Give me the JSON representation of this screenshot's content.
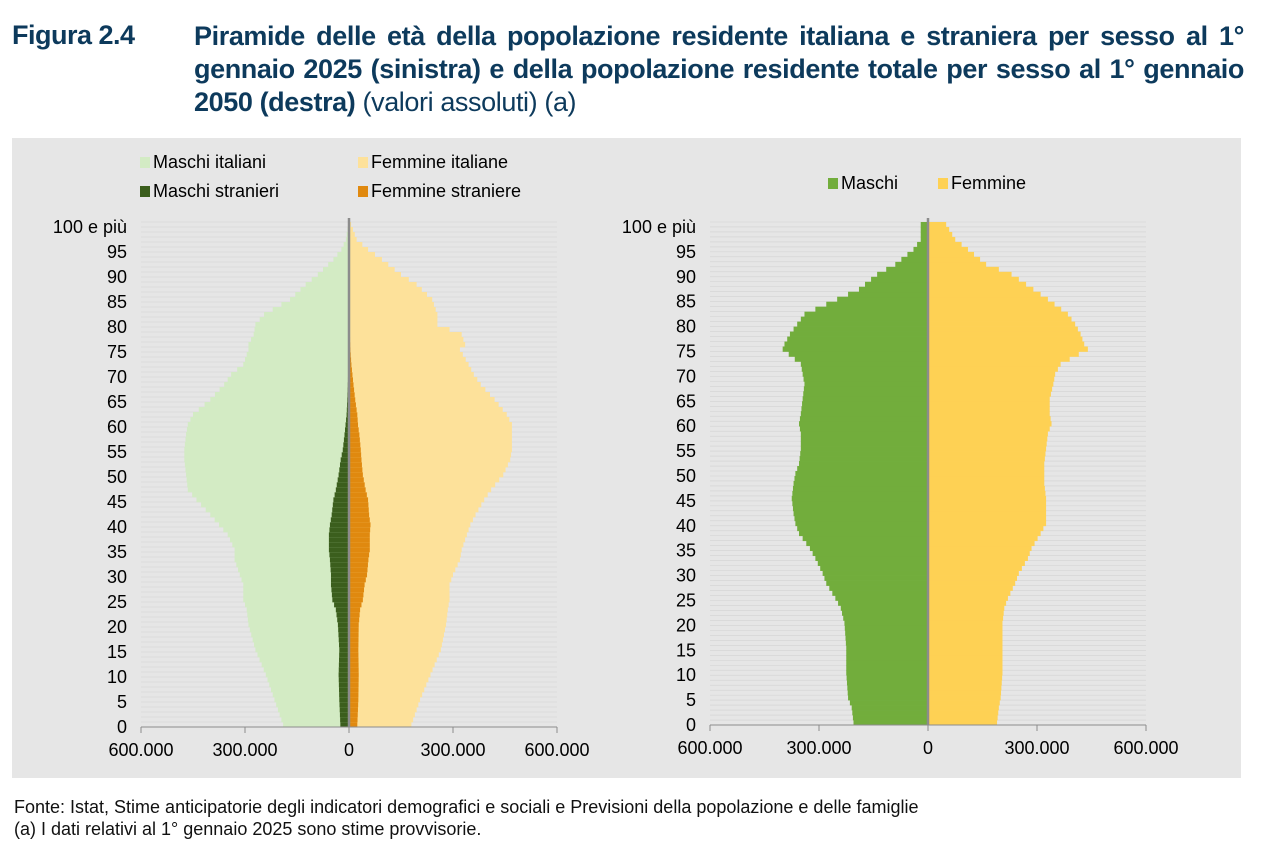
{
  "figure": {
    "label": "Figura 2.4",
    "title_main": "Piramide delle età della popolazione residente italiana e straniera per sesso al 1° gennaio 2025 (sinistra) e della popolazione residente totale per sesso al 1° gennaio 2050 (destra)",
    "title_sub": "(valori assoluti) (a)"
  },
  "notes": {
    "source": "Fonte: Istat, Stime anticipatorie degli indicatori demografici e sociali e Previsioni della popolazione e delle famiglie",
    "note_a": "(a) I dati relativi al 1° gennaio 2025 sono stime provvisorie."
  },
  "colors": {
    "maschi_italiani": "#d3ebc4",
    "femmine_italiane": "#fde19a",
    "maschi_stranieri": "#3b5e1d",
    "femmine_straniere": "#e0890f",
    "maschi": "#72ad3c",
    "femmine": "#fed154",
    "center_axis": "#8c8c8c"
  },
  "chart_data": [
    {
      "type": "bar",
      "orientation": "horizontal-pyramid",
      "stacked": true,
      "legend": [
        "Maschi italiani",
        "Femmine italiane",
        "Maschi stranieri",
        "Femmine straniere"
      ],
      "legend_position": "top-left",
      "y_ticks": [
        "0",
        "5",
        "10",
        "15",
        "20",
        "25",
        "30",
        "35",
        "40",
        "45",
        "50",
        "55",
        "60",
        "65",
        "70",
        "75",
        "80",
        "85",
        "90",
        "95",
        "100 e più"
      ],
      "x_ticks": [
        "600.000",
        "300.000",
        "0",
        "300.000",
        "600.000"
      ],
      "xlim": [
        -600000,
        600000
      ],
      "grid": true,
      "age_knots": [
        0,
        5,
        10,
        15,
        20,
        23,
        25,
        28,
        30,
        33,
        35,
        38,
        40,
        42,
        45,
        47,
        50,
        53,
        55,
        58,
        60,
        62,
        65,
        68,
        70,
        72,
        75,
        76,
        78,
        80,
        82,
        85,
        88,
        90,
        93,
        95,
        97,
        100
      ],
      "series": [
        {
          "name": "Maschi italiani",
          "values": [
            190000,
            215000,
            240000,
            270000,
            290000,
            295000,
            305000,
            305000,
            315000,
            330000,
            330000,
            350000,
            375000,
            400000,
            440000,
            465000,
            470000,
            475000,
            475000,
            470000,
            465000,
            450000,
            400000,
            360000,
            340000,
            305000,
            290000,
            290000,
            275000,
            270000,
            245000,
            170000,
            125000,
            90000,
            45000,
            22000,
            9000,
            2000
          ]
        },
        {
          "name": "Femmine italiane",
          "values": [
            180000,
            205000,
            235000,
            265000,
            280000,
            285000,
            290000,
            290000,
            300000,
            320000,
            325000,
            340000,
            350000,
            365000,
            390000,
            410000,
            445000,
            465000,
            470000,
            470000,
            470000,
            455000,
            420000,
            380000,
            360000,
            345000,
            320000,
            335000,
            325000,
            255000,
            255000,
            240000,
            195000,
            150000,
            95000,
            55000,
            22000,
            6000
          ]
        },
        {
          "name": "Maschi stranieri",
          "values": [
            25000,
            28000,
            30000,
            28000,
            32000,
            38000,
            48000,
            52000,
            52000,
            55000,
            58000,
            58000,
            55000,
            50000,
            45000,
            38000,
            30000,
            24000,
            18000,
            13000,
            10000,
            7000,
            5000,
            3500,
            2500,
            1500,
            1000,
            900,
            600,
            400,
            300,
            100,
            0,
            0,
            0,
            0,
            0,
            0
          ]
        },
        {
          "name": "Femmine straniere",
          "values": [
            24000,
            27000,
            28000,
            27000,
            28000,
            32000,
            40000,
            45000,
            52000,
            56000,
            60000,
            60000,
            62000,
            58000,
            55000,
            48000,
            40000,
            36000,
            34000,
            30000,
            26000,
            24000,
            18000,
            13000,
            10000,
            7000,
            4000,
            3500,
            2500,
            1800,
            1200,
            400,
            100,
            0,
            0,
            0,
            0,
            0
          ]
        }
      ]
    },
    {
      "type": "bar",
      "orientation": "horizontal-pyramid",
      "stacked": false,
      "legend": [
        "Maschi",
        "Femmine"
      ],
      "legend_position": "top-center",
      "y_ticks": [
        "0",
        "5",
        "10",
        "15",
        "20",
        "25",
        "30",
        "35",
        "40",
        "45",
        "50",
        "55",
        "60",
        "65",
        "70",
        "75",
        "80",
        "85",
        "90",
        "95",
        "100 e più"
      ],
      "x_ticks": [
        "600.000",
        "300.000",
        "0",
        "300.000",
        "600.000"
      ],
      "xlim": [
        -600000,
        600000
      ],
      "grid": true,
      "age_knots": [
        0,
        3,
        5,
        10,
        15,
        20,
        23,
        25,
        28,
        30,
        33,
        35,
        38,
        40,
        42,
        45,
        48,
        50,
        52,
        55,
        58,
        60,
        62,
        65,
        68,
        70,
        72,
        75,
        76,
        78,
        80,
        82,
        85,
        87,
        90,
        92,
        95,
        97,
        100
      ],
      "series": [
        {
          "name": "Maschi",
          "values": [
            205000,
            210000,
            220000,
            225000,
            225000,
            230000,
            240000,
            255000,
            280000,
            290000,
            310000,
            325000,
            355000,
            365000,
            370000,
            375000,
            370000,
            365000,
            355000,
            350000,
            350000,
            355000,
            350000,
            345000,
            340000,
            345000,
            350000,
            400000,
            395000,
            380000,
            360000,
            340000,
            250000,
            190000,
            140000,
            90000,
            40000,
            20000,
            20000
          ]
        },
        {
          "name": "Femmine",
          "values": [
            190000,
            195000,
            200000,
            205000,
            205000,
            205000,
            210000,
            220000,
            240000,
            250000,
            275000,
            285000,
            310000,
            325000,
            325000,
            325000,
            320000,
            320000,
            320000,
            325000,
            330000,
            340000,
            335000,
            335000,
            345000,
            350000,
            365000,
            440000,
            430000,
            420000,
            405000,
            385000,
            330000,
            290000,
            230000,
            160000,
            110000,
            75000,
            50000
          ]
        }
      ]
    }
  ]
}
